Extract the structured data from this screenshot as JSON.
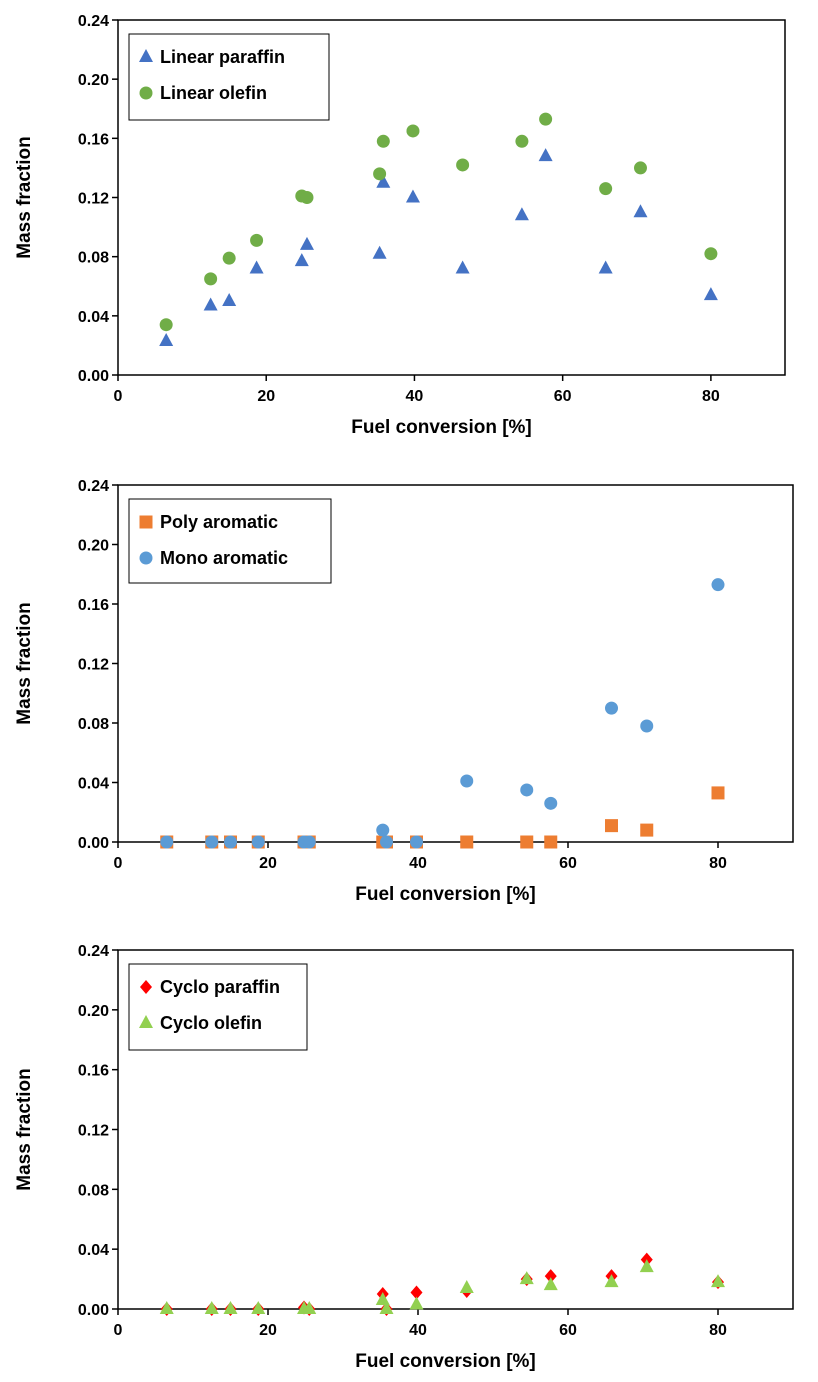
{
  "chart_data": [
    {
      "type": "scatter",
      "title": "",
      "xlabel": "Fuel conversion [%]",
      "ylabel": "Mass fraction",
      "xlim": [
        0,
        90
      ],
      "ylim": [
        0,
        0.24
      ],
      "xticks": [
        0,
        20,
        40,
        60,
        80
      ],
      "yticks": [
        0,
        0.04,
        0.08,
        0.12,
        0.16,
        0.2,
        0.24
      ],
      "xtick_labels": [
        "0",
        "20",
        "40",
        "60",
        "80"
      ],
      "ytick_labels": [
        "0.00",
        "0.04",
        "0.08",
        "0.12",
        "0.16",
        "0.20",
        "0.24"
      ],
      "grid": false,
      "legend_position": "top-left",
      "series": [
        {
          "name": "Linear paraffin",
          "marker": "triangle",
          "color": "#4472C4",
          "x": [
            6.5,
            12.5,
            15,
            18.7,
            24.8,
            25.5,
            35.3,
            35.8,
            39.8,
            46.5,
            54.5,
            57.7,
            65.8,
            70.5,
            80
          ],
          "y": [
            0.023,
            0.047,
            0.05,
            0.072,
            0.077,
            0.088,
            0.082,
            0.13,
            0.12,
            0.072,
            0.108,
            0.148,
            0.072,
            0.11,
            0.054
          ]
        },
        {
          "name": "Linear olefin",
          "marker": "circle",
          "color": "#70AD47",
          "x": [
            6.5,
            12.5,
            15,
            18.7,
            24.8,
            25.5,
            35.3,
            35.8,
            39.8,
            46.5,
            54.5,
            57.7,
            65.8,
            70.5,
            80
          ],
          "y": [
            0.034,
            0.065,
            0.079,
            0.091,
            0.121,
            0.12,
            0.136,
            0.158,
            0.165,
            0.142,
            0.158,
            0.173,
            0.126,
            0.14,
            0.082
          ]
        }
      ]
    },
    {
      "type": "scatter",
      "title": "",
      "xlabel": "Fuel conversion [%]",
      "ylabel": "Mass fraction",
      "xlim": [
        0,
        90
      ],
      "ylim": [
        0,
        0.24
      ],
      "xticks": [
        0,
        20,
        40,
        60,
        80
      ],
      "yticks": [
        0,
        0.04,
        0.08,
        0.12,
        0.16,
        0.2,
        0.24
      ],
      "xtick_labels": [
        "0",
        "20",
        "40",
        "60",
        "80"
      ],
      "ytick_labels": [
        "0.00",
        "0.04",
        "0.08",
        "0.12",
        "0.16",
        "0.20",
        "0.24"
      ],
      "grid": false,
      "legend_position": "top-left",
      "series": [
        {
          "name": "Poly aromatic",
          "marker": "square",
          "color": "#ED7D31",
          "x": [
            6.5,
            12.5,
            15,
            18.7,
            24.8,
            25.5,
            35.3,
            35.8,
            39.8,
            46.5,
            54.5,
            57.7,
            65.8,
            70.5,
            80
          ],
          "y": [
            0,
            0,
            0,
            0,
            0,
            0,
            0,
            0,
            0,
            0,
            0,
            0,
            0.011,
            0.008,
            0.033
          ]
        },
        {
          "name": "Mono aromatic",
          "marker": "circle",
          "color": "#5B9BD5",
          "x": [
            6.5,
            12.5,
            15,
            18.7,
            24.8,
            25.5,
            35.3,
            35.8,
            39.8,
            46.5,
            54.5,
            57.7,
            65.8,
            70.5,
            80
          ],
          "y": [
            0,
            0,
            0,
            0,
            0,
            0,
            0.008,
            0,
            0,
            0.041,
            0.035,
            0.026,
            0.09,
            0.078,
            0.173
          ]
        }
      ]
    },
    {
      "type": "scatter",
      "title": "",
      "xlabel": "Fuel conversion [%]",
      "ylabel": "Mass fraction",
      "xlim": [
        0,
        90
      ],
      "ylim": [
        0,
        0.24
      ],
      "xticks": [
        0,
        20,
        40,
        60,
        80
      ],
      "yticks": [
        0,
        0.04,
        0.08,
        0.12,
        0.16,
        0.2,
        0.24
      ],
      "xtick_labels": [
        "0",
        "20",
        "40",
        "60",
        "80"
      ],
      "ytick_labels": [
        "0.00",
        "0.04",
        "0.08",
        "0.12",
        "0.16",
        "0.20",
        "0.24"
      ],
      "grid": false,
      "legend_position": "top-left",
      "series": [
        {
          "name": "Cyclo paraffin",
          "marker": "diamond",
          "color": "#FF0000",
          "x": [
            6.5,
            12.5,
            15,
            18.7,
            24.8,
            25.5,
            35.3,
            35.8,
            39.8,
            46.5,
            54.5,
            57.7,
            65.8,
            70.5,
            80
          ],
          "y": [
            0,
            0,
            0,
            0,
            0.001,
            0,
            0.01,
            0,
            0.011,
            0.012,
            0.02,
            0.022,
            0.022,
            0.033,
            0.018
          ]
        },
        {
          "name": "Cyclo olefin",
          "marker": "triangle",
          "color": "#92D050",
          "x": [
            6.5,
            12.5,
            15,
            18.7,
            24.8,
            25.5,
            35.3,
            35.8,
            39.8,
            46.5,
            54.5,
            57.7,
            65.8,
            70.5,
            80
          ],
          "y": [
            0,
            0,
            0,
            0,
            0,
            0,
            0.006,
            0,
            0.003,
            0.014,
            0.02,
            0.016,
            0.018,
            0.028,
            0.018
          ]
        }
      ]
    }
  ]
}
